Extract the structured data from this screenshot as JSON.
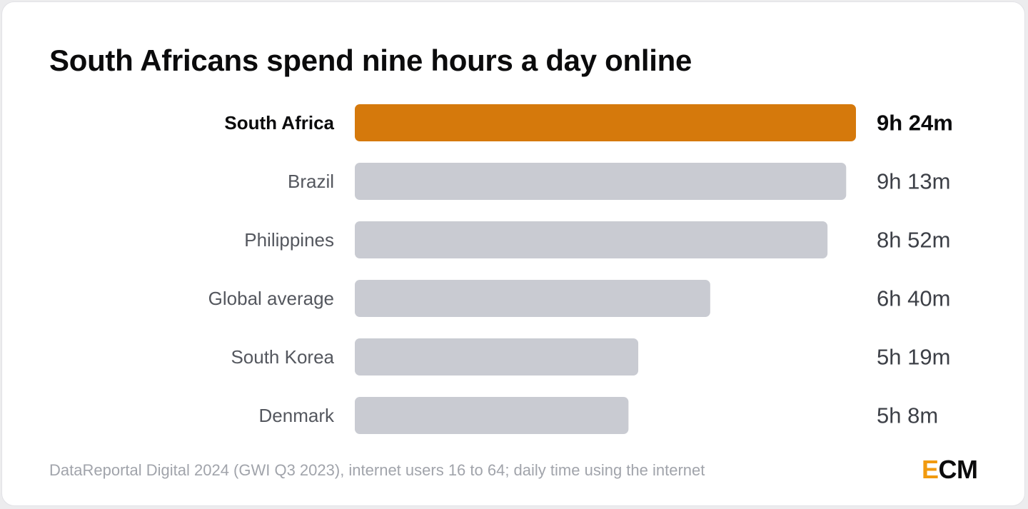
{
  "title": "South Africans spend nine hours a day online",
  "source": "DataReportal Digital 2024 (GWI Q3 2023), internet users 16 to 64; daily time using the internet",
  "logo": {
    "first": "E",
    "rest": "CM"
  },
  "colors": {
    "highlight": "#d5790c",
    "bar": "#c9cbd2",
    "label_highlight": "#0b0b0c",
    "label": "#54575e",
    "value": "#3d4047"
  },
  "chart_data": {
    "type": "bar",
    "orientation": "horizontal",
    "unit": "minutes per day",
    "categories": [
      "South Africa",
      "Brazil",
      "Philippines",
      "Global average",
      "South Korea",
      "Denmark"
    ],
    "values": [
      564,
      553,
      532,
      400,
      319,
      308
    ],
    "value_labels": [
      "9h 24m",
      "9h 13m",
      "8h 52m",
      "6h 40m",
      "5h 19m",
      "5h 8m"
    ],
    "highlight": [
      "South Africa"
    ],
    "grid": false,
    "legend": "none"
  }
}
